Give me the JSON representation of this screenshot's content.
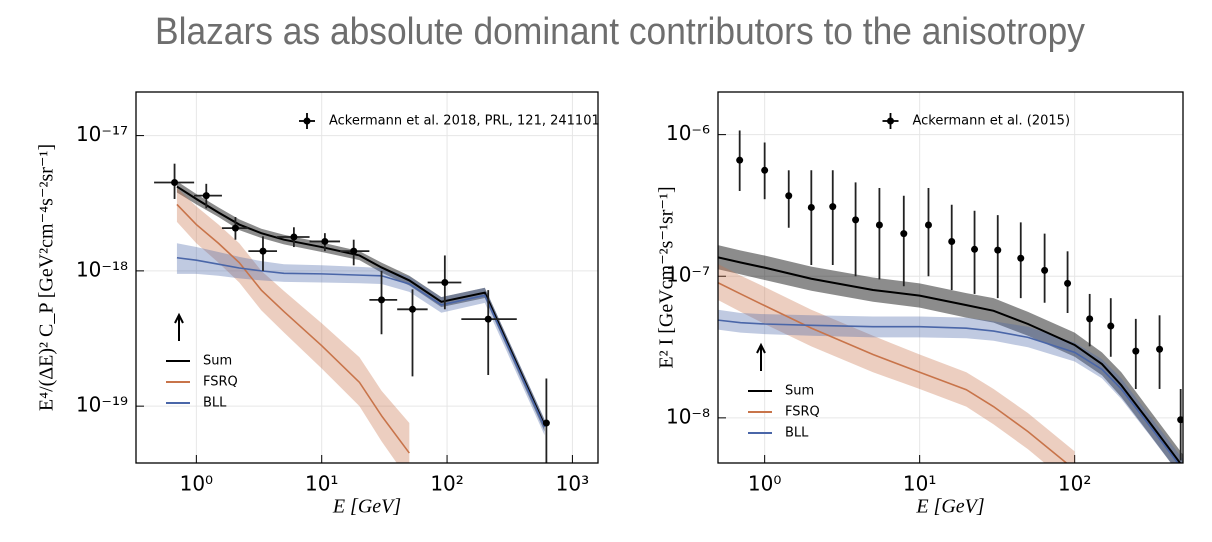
{
  "title": "Blazars as absolute dominant contributors to the anisotropy",
  "chart_data": [
    {
      "type": "line",
      "xlabel": "E  [GeV]",
      "ylabel": "E⁴/(ΔE)² C_P  [GeV²cm⁻⁴s⁻²sr⁻¹]",
      "log_x": true,
      "log_y": true,
      "grid": true,
      "legend": "lower left",
      "xlim": [
        0.33,
        1600
      ],
      "ylim": [
        3.8e-20,
        2.1e-17
      ],
      "xticks": [
        {
          "value": 1,
          "label": "10⁰"
        },
        {
          "value": 10,
          "label": "10¹"
        },
        {
          "value": 100,
          "label": "10²"
        },
        {
          "value": 1000,
          "label": "10³"
        }
      ],
      "yticks": [
        {
          "value": 1e-17,
          "label": "10⁻¹⁷"
        },
        {
          "value": 1e-18,
          "label": "10⁻¹⁸"
        },
        {
          "value": 1e-19,
          "label": "10⁻¹⁹"
        }
      ],
      "x": [
        0.7,
        1,
        1.5,
        2.2,
        3.3,
        5,
        10,
        20,
        30,
        50,
        90,
        200,
        600
      ],
      "series": [
        {
          "name": "Sum",
          "color": "#000000",
          "values": [
            4.2e-18,
            3.4e-18,
            2.7e-18,
            2.2e-18,
            1.9e-18,
            1.7e-18,
            1.5e-18,
            1.3e-18,
            1.06e-18,
            8.5e-19,
            5.9e-19,
            6.9e-19,
            7.2e-20
          ],
          "lower": [
            3.8e-18,
            3.1e-18,
            2.5e-18,
            2e-18,
            1.75e-18,
            1.57e-18,
            1.38e-18,
            1.2e-18,
            9.7e-19,
            7.8e-19,
            5.4e-19,
            6.3e-19,
            6.5e-20
          ],
          "upper": [
            4.6e-18,
            3.7e-18,
            2.95e-18,
            2.4e-18,
            2.05e-18,
            1.85e-18,
            1.62e-18,
            1.4e-18,
            1.15e-18,
            9.2e-19,
            6.4e-19,
            7.5e-19,
            7.9e-20
          ]
        },
        {
          "name": "FSRQ",
          "color": "#c8744a",
          "values": [
            3.1e-18,
            2.2e-18,
            1.6e-18,
            1.15e-18,
            7.2e-19,
            5e-19,
            2.8e-19,
            1.5e-19,
            8.5e-20,
            4.5e-20,
            null,
            null,
            null
          ],
          "lower": [
            2.3e-18,
            1.6e-18,
            1.15e-18,
            8.2e-19,
            5.1e-19,
            3.5e-19,
            1.9e-19,
            1e-19,
            5.5e-20,
            2.8e-20,
            null,
            null,
            null
          ],
          "upper": [
            4.1e-18,
            3e-18,
            2.2e-18,
            1.6e-18,
            1e-18,
            7.1e-19,
            4.1e-19,
            2.3e-19,
            1.3e-19,
            7.5e-20,
            null,
            null,
            null
          ]
        },
        {
          "name": "BLL",
          "color": "#4a66a8",
          "values": [
            1.25e-18,
            1.2e-18,
            1.12e-18,
            1.05e-18,
            1e-18,
            9.6e-19,
            9.5e-19,
            9.3e-19,
            9.2e-19,
            8e-19,
            5.6e-19,
            6.6e-19,
            7e-20
          ],
          "lower": [
            9.5e-19,
            9.5e-19,
            9.2e-19,
            8.8e-19,
            8.5e-19,
            8.3e-19,
            8.2e-19,
            8.1e-19,
            8e-19,
            7e-19,
            4.9e-19,
            5.8e-19,
            6.1e-20
          ],
          "upper": [
            1.6e-18,
            1.5e-18,
            1.38e-18,
            1.27e-18,
            1.18e-18,
            1.12e-18,
            1.1e-18,
            1.07e-18,
            1.05e-18,
            9.1e-19,
            6.4e-19,
            7.5e-19,
            8e-20
          ]
        }
      ],
      "points": {
        "name": "Ackermann et al. 2018, PRL, 121, 241101",
        "color": "#000000",
        "x": [
          0.67,
          1.2,
          2.05,
          3.4,
          6.0,
          10.6,
          18,
          30,
          53,
          96,
          213,
          620
        ],
        "values": [
          4.5e-18,
          3.6e-18,
          2.07e-18,
          1.4e-18,
          1.78e-18,
          1.65e-18,
          1.4e-18,
          6.1e-19,
          5.2e-19,
          8.2e-19,
          4.4e-19,
          7.5e-20
        ],
        "y_low": [
          3.4e-18,
          2.9e-18,
          1.7e-18,
          1e-18,
          1.5e-18,
          1.4e-18,
          1.1e-18,
          3.4e-19,
          1.66e-19,
          5.2e-19,
          1.7e-19,
          3e-20
        ],
        "y_high": [
          6.2e-18,
          4.4e-18,
          2.5e-18,
          1.8e-18,
          2.1e-18,
          1.9e-18,
          1.7e-18,
          1e-18,
          7.3e-19,
          1.3e-18,
          7.2e-19,
          1.6e-19
        ],
        "x_low": [
          0.46,
          0.96,
          1.6,
          2.6,
          4.4,
          8,
          14,
          24,
          40,
          70,
          130,
          null
        ],
        "x_high": [
          0.96,
          1.6,
          2.6,
          4.4,
          8,
          14,
          24,
          40,
          70,
          130,
          360,
          null
        ]
      }
    },
    {
      "type": "line",
      "xlabel": "E  [GeV]",
      "ylabel": "E² I [GeVcm⁻²s⁻¹sr⁻¹]",
      "log_x": true,
      "log_y": true,
      "grid": true,
      "legend": "lower left",
      "xlim": [
        0.5,
        500
      ],
      "ylim": [
        4.8e-09,
        2e-06
      ],
      "xticks": [
        {
          "value": 1,
          "label": "10⁰"
        },
        {
          "value": 10,
          "label": "10¹"
        },
        {
          "value": 100,
          "label": "10²"
        }
      ],
      "yticks": [
        {
          "value": 1e-06,
          "label": "10⁻⁶"
        },
        {
          "value": 1e-07,
          "label": "10⁻⁷"
        },
        {
          "value": 1e-08,
          "label": "10⁻⁸"
        }
      ],
      "x": [
        0.5,
        0.7,
        1,
        2,
        5,
        10,
        20,
        30,
        50,
        100,
        150,
        200,
        300,
        500
      ],
      "series": [
        {
          "name": "Sum",
          "color": "#000000",
          "values": [
            1.36e-07,
            1.25e-07,
            1.15e-07,
            9.6e-08,
            8e-08,
            7.3e-08,
            6.25e-08,
            5.7e-08,
            4.6e-08,
            3.27e-08,
            2.4e-08,
            1.7e-08,
            9.5e-09,
            4.5e-09
          ],
          "lower": [
            1.12e-07,
            1.03e-07,
            9.4e-08,
            7.9e-08,
            6.6e-08,
            6e-08,
            5.1e-08,
            4.7e-08,
            3.8e-08,
            2.7e-08,
            2e-08,
            1.4e-08,
            7.8e-09,
            3.7e-09
          ],
          "upper": [
            1.66e-07,
            1.52e-07,
            1.4e-07,
            1.17e-07,
            9.8e-08,
            8.9e-08,
            7.6e-08,
            7e-08,
            5.6e-08,
            4e-08,
            2.9e-08,
            2.1e-08,
            1.16e-08,
            5.5e-09
          ]
        },
        {
          "name": "FSRQ",
          "color": "#c8744a",
          "values": [
            9e-08,
            7.5e-08,
            6.2e-08,
            4.3e-08,
            2.8e-08,
            2.1e-08,
            1.58e-08,
            1.2e-08,
            8e-09,
            4.3e-09,
            null,
            null,
            null,
            null
          ],
          "lower": [
            6.8e-08,
            5.6e-08,
            4.6e-08,
            3.2e-08,
            2.1e-08,
            1.6e-08,
            1.2e-08,
            9e-09,
            6e-09,
            3.2e-09,
            null,
            null,
            null,
            null
          ],
          "upper": [
            1.22e-07,
            1.01e-07,
            8.4e-08,
            5.8e-08,
            3.8e-08,
            2.8e-08,
            2.1e-08,
            1.6e-08,
            1.08e-08,
            5.8e-09,
            null,
            null,
            null,
            null
          ]
        },
        {
          "name": "BLL",
          "color": "#4a66a8",
          "values": [
            4.9e-08,
            4.7e-08,
            4.6e-08,
            4.5e-08,
            4.4e-08,
            4.4e-08,
            4.3e-08,
            4.1e-08,
            3.7e-08,
            2.9e-08,
            2.2e-08,
            1.6e-08,
            9e-09,
            4.3e-09
          ],
          "lower": [
            4.2e-08,
            4e-08,
            3.9e-08,
            3.8e-08,
            3.7e-08,
            3.7e-08,
            3.65e-08,
            3.5e-08,
            3.15e-08,
            2.5e-08,
            1.9e-08,
            1.36e-08,
            7.7e-09,
            3.7e-09
          ],
          "upper": [
            5.8e-08,
            5.5e-08,
            5.4e-08,
            5.3e-08,
            5.2e-08,
            5.2e-08,
            5.1e-08,
            4.8e-08,
            4.4e-08,
            3.4e-08,
            2.6e-08,
            1.9e-08,
            1.06e-08,
            5.1e-09
          ]
        }
      ],
      "points": {
        "name": "Ackermann et al. (2015)",
        "color": "#000000",
        "x": [
          0.69,
          1.0,
          1.43,
          2.0,
          2.75,
          3.86,
          5.5,
          7.9,
          11.4,
          16.1,
          22.6,
          31.9,
          44.9,
          64,
          90,
          125,
          171,
          248,
          353,
          483
        ],
        "values": [
          6.6e-07,
          5.6e-07,
          3.7e-07,
          3.06e-07,
          3.1e-07,
          2.5e-07,
          2.3e-07,
          2e-07,
          2.3e-07,
          1.76e-07,
          1.55e-07,
          1.53e-07,
          1.34e-07,
          1.1e-07,
          8.9e-08,
          5e-08,
          4.45e-08,
          2.96e-08,
          3.05e-08,
          9.7e-09
        ],
        "y_low": [
          4e-07,
          3.5e-07,
          2.2e-07,
          1.2e-07,
          1.2e-07,
          1e-07,
          9.5e-08,
          8.5e-08,
          1e-07,
          8e-08,
          7.5e-08,
          7e-08,
          7e-08,
          6.5e-08,
          5.5e-08,
          3.2e-08,
          2.7e-08,
          1.6e-08,
          1.6e-08,
          5e-09
        ],
        "y_high": [
          1.07e-06,
          8.8e-07,
          5.6e-07,
          5.6e-07,
          5.6e-07,
          4.6e-07,
          4.2e-07,
          3.7e-07,
          4.2e-07,
          3.2e-07,
          2.9e-07,
          2.7e-07,
          2.4e-07,
          2e-07,
          1.5e-07,
          7.5e-08,
          7e-08,
          5e-08,
          5.3e-08,
          1.6e-08
        ]
      }
    }
  ]
}
